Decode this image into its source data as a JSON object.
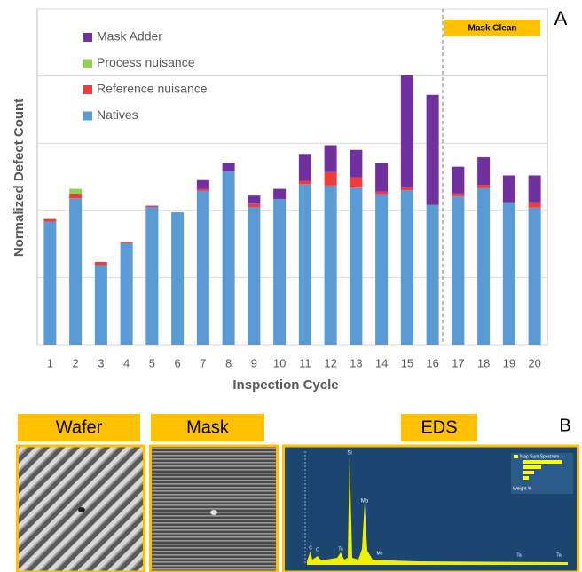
{
  "chart_data": {
    "type": "stacked_bar",
    "panel_label": "A",
    "y_label": "Normalized Defect Count",
    "x_label": "Inspection Cycle",
    "categories": [
      "1",
      "2",
      "3",
      "4",
      "5",
      "6",
      "7",
      "8",
      "9",
      "10",
      "11",
      "12",
      "13",
      "14",
      "15",
      "16",
      "17",
      "18",
      "19",
      "20"
    ],
    "series": [
      {
        "name": "Natives",
        "color": "#5b9bd5",
        "values": [
          1.83,
          2.18,
          1.18,
          1.51,
          2.05,
          1.97,
          2.29,
          2.59,
          2.05,
          2.17,
          2.39,
          2.37,
          2.34,
          2.24,
          2.3,
          2.08,
          2.21,
          2.33,
          2.12,
          2.04
        ]
      },
      {
        "name": "Reference nuisance",
        "color": "#ee3b3b",
        "values": [
          0.04,
          0.07,
          0.05,
          0.02,
          0.02,
          0,
          0.03,
          0,
          0.05,
          0,
          0.05,
          0.2,
          0.15,
          0.04,
          0.05,
          0,
          0.04,
          0.05,
          0,
          0.08
        ]
      },
      {
        "name": "Process nuisance",
        "color": "#92d050",
        "values": [
          0,
          0.07,
          0,
          0,
          0,
          0,
          0,
          0,
          0,
          0,
          0,
          0,
          0,
          0,
          0,
          0,
          0,
          0,
          0,
          0
        ]
      },
      {
        "name": "Mask Adder",
        "color": "#7030a0",
        "values": [
          0,
          0,
          0,
          0,
          0,
          0,
          0.13,
          0.12,
          0.12,
          0.15,
          0.4,
          0.4,
          0.41,
          0.42,
          1.66,
          1.64,
          0.4,
          0.41,
          0.4,
          0.4
        ]
      }
    ],
    "ylim": [
      0,
      5
    ],
    "yticks": [
      0,
      1,
      2,
      3,
      4,
      5
    ],
    "tick_labels": false,
    "grid": true,
    "legend": "top-left",
    "divider": {
      "text": "Mask Clean",
      "after_category": "16",
      "color": "#ffc000"
    }
  },
  "panels": {
    "label": "B",
    "frame_color": "#ffc000",
    "items": [
      {
        "title": "Wafer"
      },
      {
        "title": "Mask"
      },
      {
        "title": "EDS"
      }
    ],
    "eds": {
      "legend": "Map Sum Spectrum",
      "axis": "Weight %",
      "peaks": [
        "Si",
        "Mo",
        "Mo",
        "C",
        "O",
        "Ta",
        "Ta",
        "Ta"
      ]
    }
  }
}
